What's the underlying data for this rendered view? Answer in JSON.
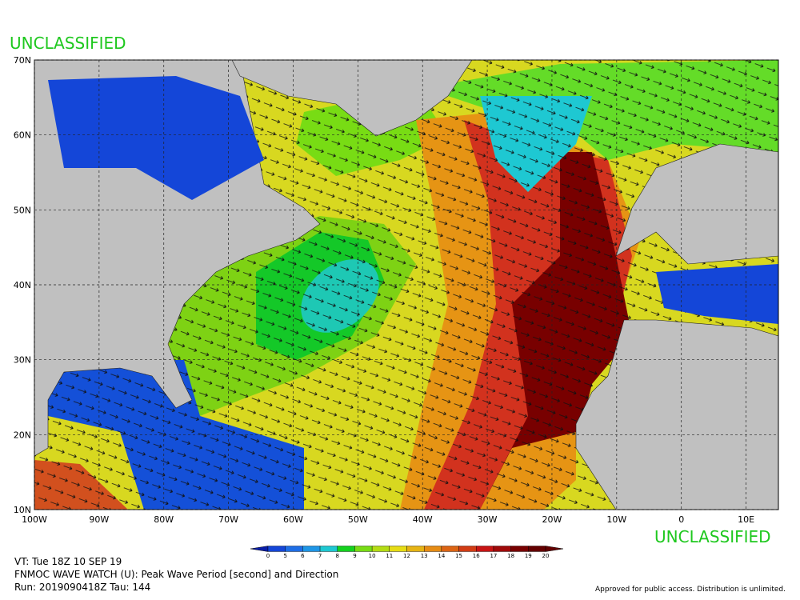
{
  "header": {
    "classification_top": "UNCLASSIFIED",
    "classification_bottom": "UNCLASSIFIED"
  },
  "map": {
    "lat_labels": [
      "70N",
      "60N",
      "50N",
      "40N",
      "30N",
      "20N",
      "10N"
    ],
    "lon_labels": [
      "100W",
      "90W",
      "80W",
      "70W",
      "60W",
      "50W",
      "40W",
      "30W",
      "20W",
      "10W",
      "0",
      "10E"
    ]
  },
  "colorbar": {
    "ticks": [
      0,
      5,
      6,
      7,
      8,
      9,
      10,
      11,
      12,
      13,
      14,
      15,
      16,
      17,
      18,
      19,
      20
    ],
    "colors": [
      "#0a1ea8",
      "#1446d8",
      "#1e6ee6",
      "#1e96e6",
      "#1ec8d2",
      "#14d21e",
      "#78dc14",
      "#b4dc14",
      "#e6dc14",
      "#e6b414",
      "#e68c14",
      "#dc6414",
      "#d23c14",
      "#c81414",
      "#a00a0a",
      "#780000",
      "#640000"
    ]
  },
  "footer": {
    "valid_time": "VT: Tue 18Z 10 SEP 19",
    "product": "FNMOC WAVE WATCH (U): Peak Wave Period [second] and Direction",
    "run": "Run: 2019090418Z Tau: 144",
    "disclaimer": "Approved for public access. Distribution is unlimited."
  }
}
